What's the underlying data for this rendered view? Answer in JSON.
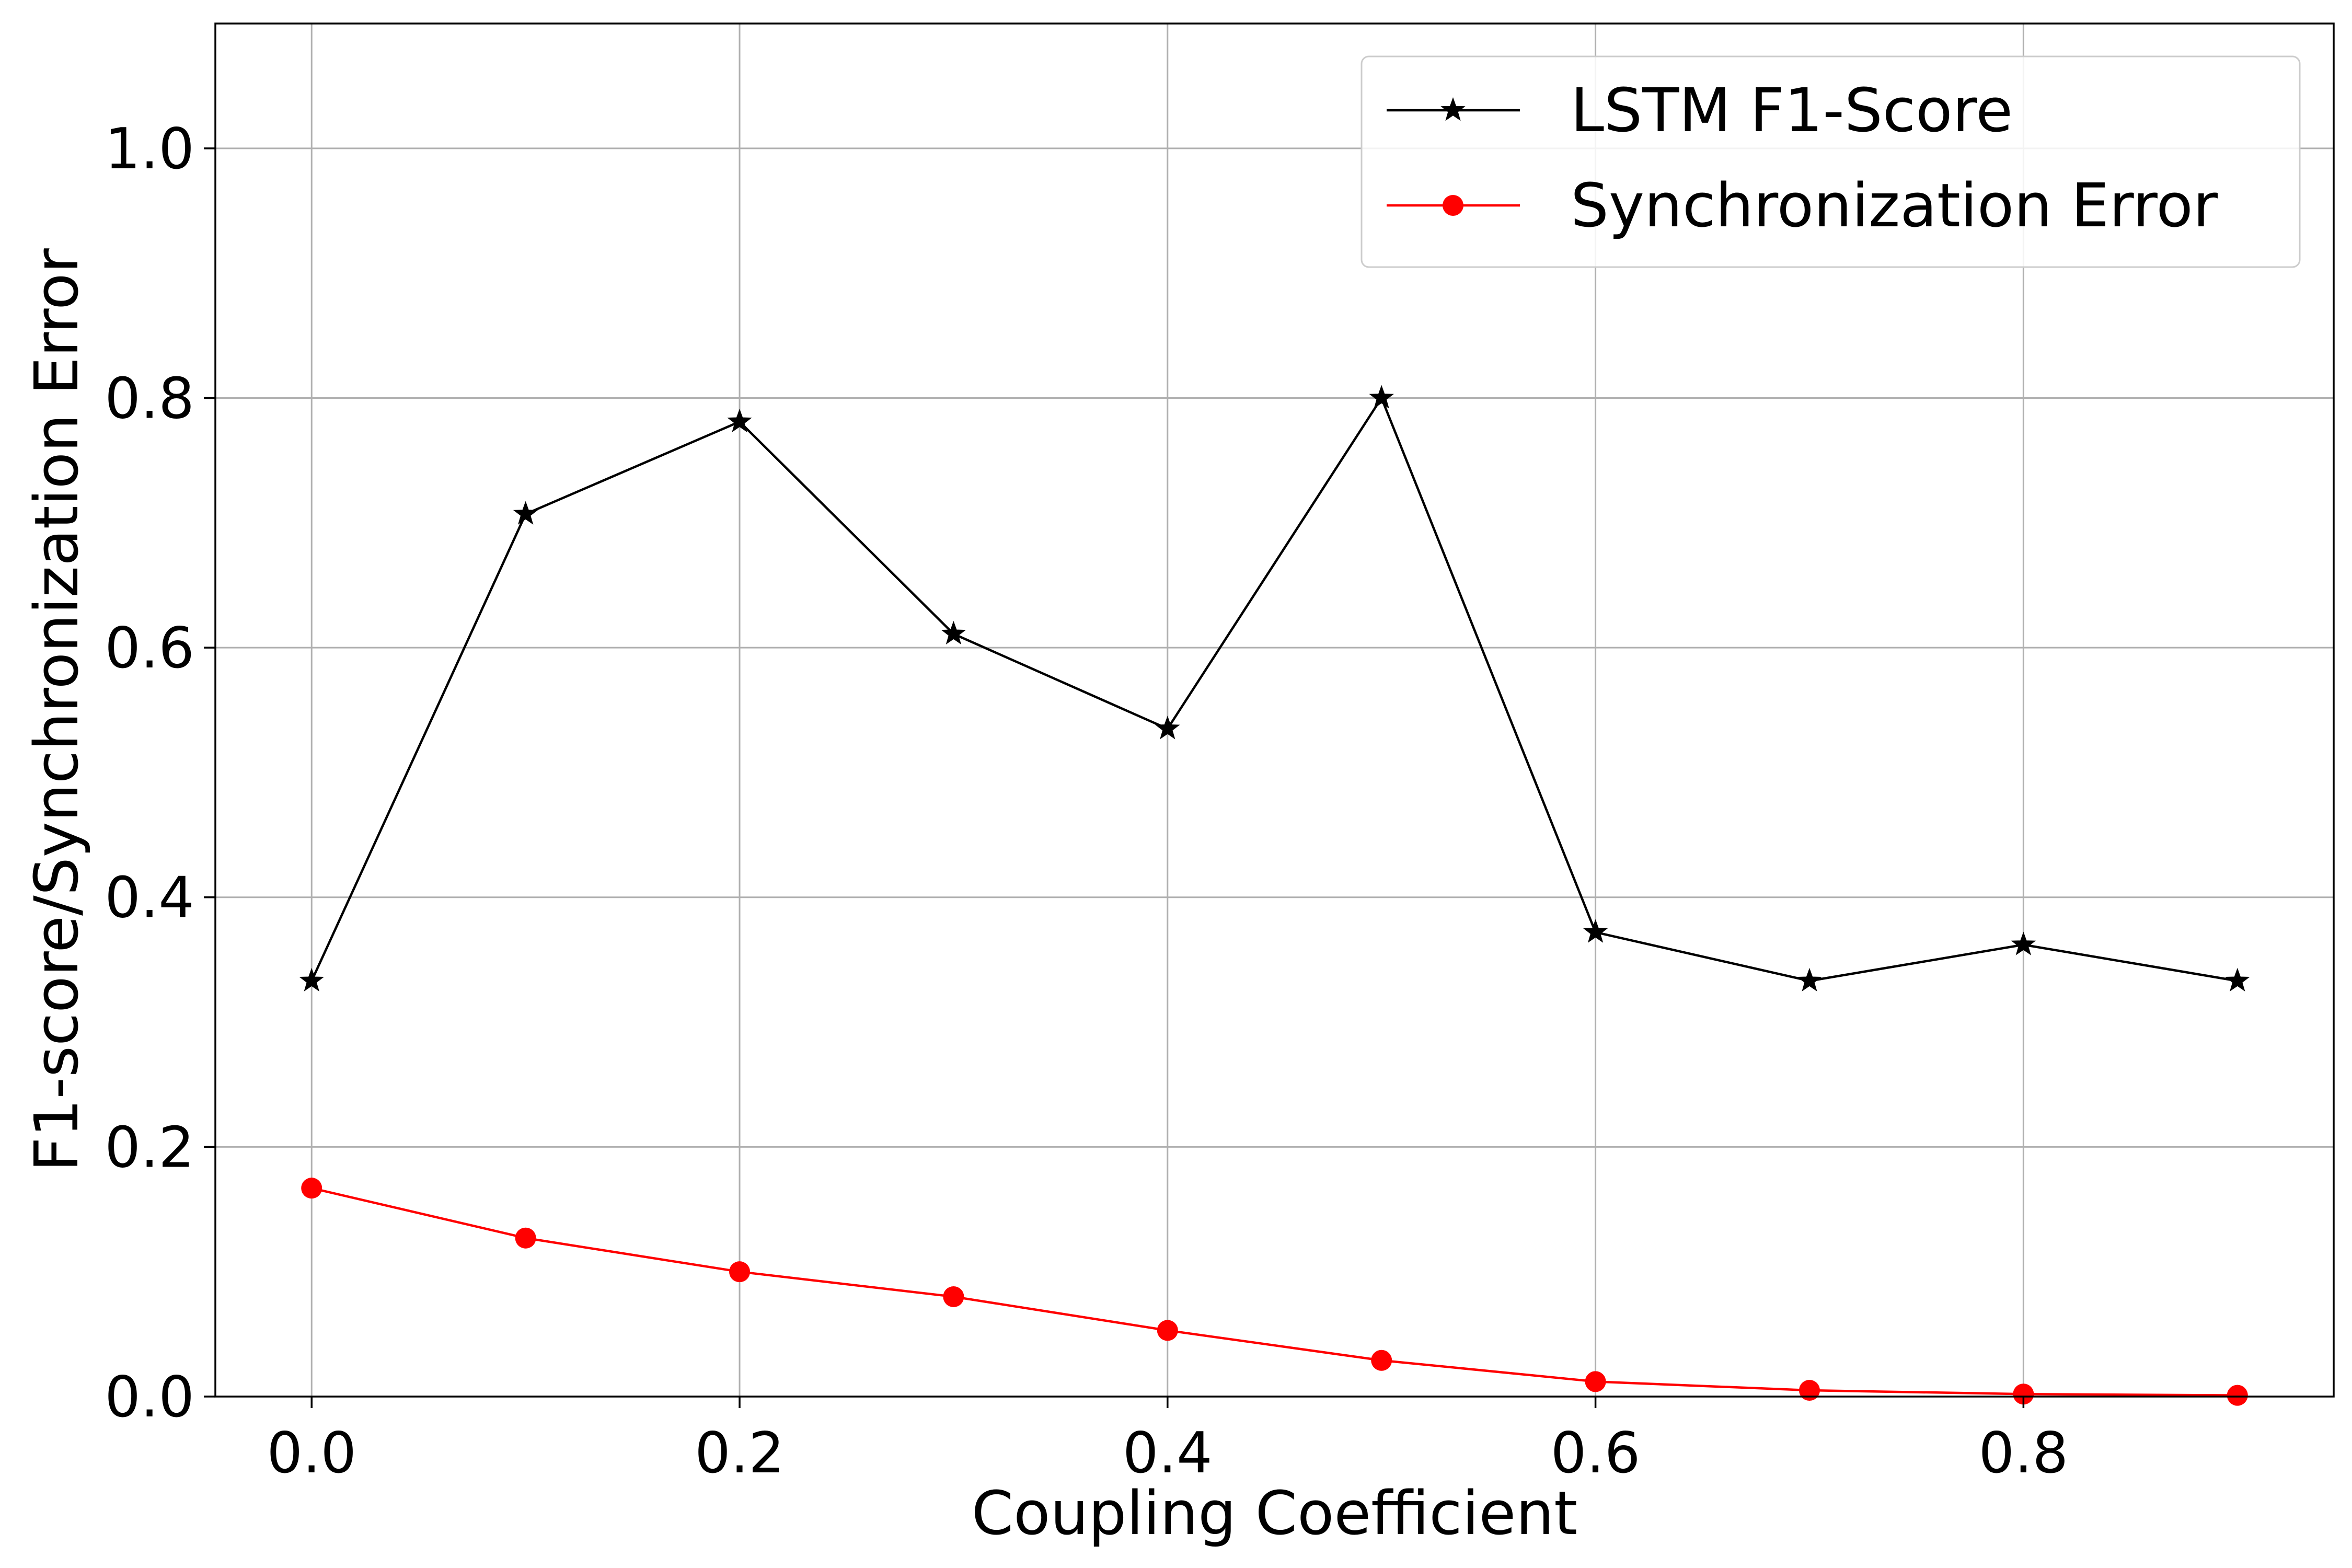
{
  "chart_data": {
    "type": "line",
    "title": "",
    "xlabel": "Coupling Coefficient",
    "ylabel": "F1-score/Synchronization Error",
    "xlim": [
      -0.045,
      0.945
    ],
    "ylim": [
      0.0,
      1.1
    ],
    "xticks": [
      "0.0",
      "0.2",
      "0.4",
      "0.6",
      "0.8"
    ],
    "xtick_values": [
      0.0,
      0.2,
      0.4,
      0.6,
      0.8
    ],
    "yticks": [
      "0.0",
      "0.2",
      "0.4",
      "0.6",
      "0.8",
      "1.0"
    ],
    "ytick_values": [
      0.0,
      0.2,
      0.4,
      0.6,
      0.8,
      1.0
    ],
    "grid": true,
    "legend_position": "top-right",
    "x": [
      0.0,
      0.1,
      0.2,
      0.3,
      0.4,
      0.5,
      0.6,
      0.7,
      0.8,
      0.9
    ],
    "series": [
      {
        "name": "LSTM F1-Score",
        "color": "#000000",
        "marker": "star",
        "values": [
          0.333,
          0.707,
          0.781,
          0.611,
          0.535,
          0.8,
          0.372,
          0.333,
          0.362,
          0.333
        ]
      },
      {
        "name": "Synchronization Error",
        "color": "#ff0000",
        "marker": "circle",
        "values": [
          0.167,
          0.127,
          0.1,
          0.08,
          0.053,
          0.029,
          0.012,
          0.005,
          0.002,
          0.001
        ]
      }
    ]
  }
}
